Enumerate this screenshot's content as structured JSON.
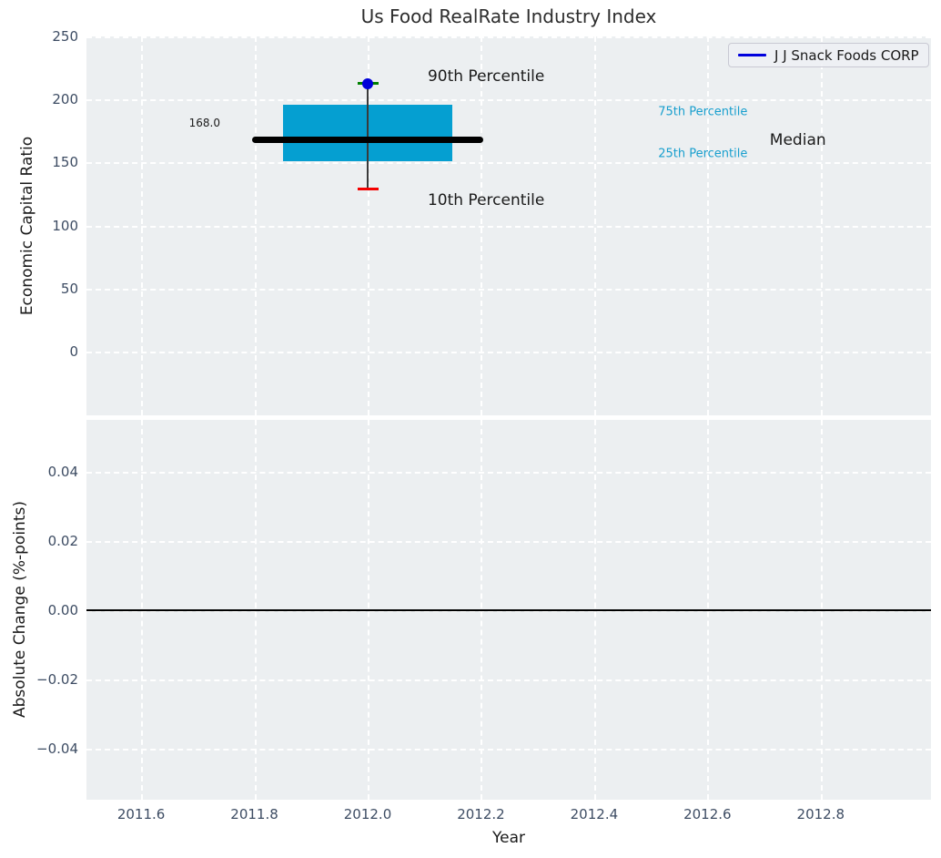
{
  "title": "Us Food RealRate Industry Index",
  "legend": {
    "label": "J J Snack Foods CORP",
    "line_color": "#0000dd"
  },
  "chart_data": {
    "type": "boxplot",
    "title": "Us Food RealRate Industry Index",
    "xlabel": "Year",
    "x_range": [
      2011.503,
      2012.995
    ],
    "x_ticks": [
      {
        "v": 2011.6,
        "label": "2011.6"
      },
      {
        "v": 2011.8,
        "label": "2011.8"
      },
      {
        "v": 2012.0,
        "label": "2012.0"
      },
      {
        "v": 2012.2,
        "label": "2012.2"
      },
      {
        "v": 2012.4,
        "label": "2012.4"
      },
      {
        "v": 2012.6,
        "label": "2012.6"
      },
      {
        "v": 2012.8,
        "label": "2012.8"
      }
    ],
    "panels": [
      {
        "name": "economic-capital-ratio",
        "ylabel": "Economic Capital Ratio",
        "y_range": [
          -55,
          250
        ],
        "y_ticks": [
          {
            "v": 250,
            "label": "250"
          },
          {
            "v": 200,
            "label": "200"
          },
          {
            "v": 150,
            "label": "150"
          },
          {
            "v": 100,
            "label": "100"
          },
          {
            "v": 50,
            "label": "50"
          },
          {
            "v": 0,
            "label": "0"
          }
        ],
        "box": {
          "x_center": 2012.0,
          "x_left": 2011.85,
          "x_right": 2012.15,
          "p10": 129,
          "p25": 151,
          "median": 168.0,
          "p75": 195.5,
          "p90": 212.5,
          "company_value": 212.5
        },
        "median_line": {
          "x1": 2011.8,
          "x2": 2012.2,
          "value": 168.0
        },
        "annotations": [
          {
            "text": "168.0",
            "x": 2011.712,
            "y": 181,
            "size": 12,
            "color": "#1a1a1a",
            "anchor": "middle"
          },
          {
            "text": "90th Percentile",
            "x": 2012.106,
            "y": 218,
            "size": 17,
            "color": "#1a1a1a",
            "anchor": "start"
          },
          {
            "text": "10th Percentile",
            "x": 2012.106,
            "y": 120,
            "size": 17,
            "color": "#1a1a1a",
            "anchor": "start"
          },
          {
            "text": "75th Percentile",
            "x": 2012.513,
            "y": 190,
            "size": 13,
            "color": "#189fce",
            "anchor": "start"
          },
          {
            "text": "25th Percentile",
            "x": 2012.513,
            "y": 157,
            "size": 13,
            "color": "#189fce",
            "anchor": "start"
          },
          {
            "text": "Median",
            "x": 2012.71,
            "y": 167.5,
            "size": 17,
            "color": "#1a1a1a",
            "anchor": "start"
          }
        ]
      },
      {
        "name": "absolute-change",
        "ylabel": "Absolute Change (%-points)",
        "y_range": [
          -0.055,
          0.055
        ],
        "y_ticks": [
          {
            "v": 0.04,
            "label": "0.04"
          },
          {
            "v": 0.02,
            "label": "0.02"
          },
          {
            "v": 0.0,
            "label": "0.00"
          },
          {
            "v": -0.02,
            "label": "−0.02"
          },
          {
            "v": -0.04,
            "label": "−0.04"
          }
        ],
        "zero_line": 0.0
      }
    ],
    "colors": {
      "box_fill": "#059fd1",
      "median": "#000000",
      "whisker": "#3a3a3a",
      "cap_top": "#008000",
      "cap_bottom": "#f40000",
      "company_dot": "#0000d9",
      "plot_background": "#eceff1",
      "grid": "#ffffff",
      "tick_label": "#3d4c63"
    },
    "legend_position": "upper right",
    "grid": "dashed-white"
  }
}
